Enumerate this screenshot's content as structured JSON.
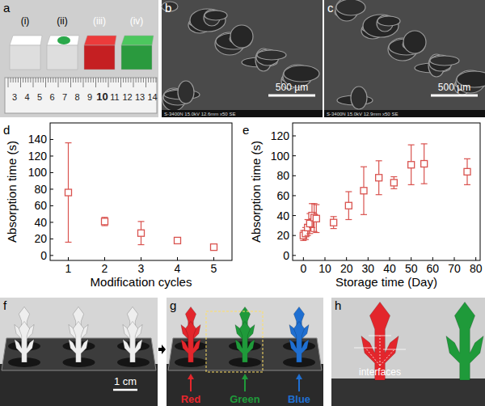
{
  "chart_data": [
    {
      "type": "scatter",
      "x_label": "Modification cycles",
      "y_label": "Absorption time (s)",
      "x": [
        1,
        2,
        3,
        4,
        5
      ],
      "series": [
        {
          "color": "#d9534f",
          "marker": "square",
          "values": [
            76,
            41,
            27,
            18,
            10
          ],
          "errors": [
            60,
            5,
            14,
            2,
            2
          ]
        }
      ],
      "xlim": [
        0.5,
        5.5
      ],
      "ylim": [
        -6,
        160
      ],
      "xticks": [
        1,
        2,
        3,
        4,
        5
      ],
      "yticks": [
        0,
        20,
        40,
        60,
        80,
        100,
        120,
        140
      ]
    },
    {
      "type": "scatter",
      "x_label": "Storage time (Day)",
      "y_label": "Absorption time (s)",
      "x": [
        0,
        1,
        2,
        3,
        4,
        5,
        6,
        14,
        21,
        28,
        35,
        42,
        50,
        56,
        76
      ],
      "series": [
        {
          "color": "#d9534f",
          "marker": "square",
          "values": [
            20,
            22,
            28,
            32,
            40,
            38,
            37,
            33,
            50,
            65,
            78,
            73,
            91,
            92,
            84
          ],
          "errors": [
            5,
            6,
            8,
            10,
            12,
            14,
            14,
            6,
            14,
            24,
            17,
            6,
            20,
            20,
            13
          ]
        }
      ],
      "xlim": [
        -5,
        82
      ],
      "ylim": [
        -5,
        133
      ],
      "xticks": [
        0,
        10,
        20,
        30,
        40,
        50,
        60,
        70,
        80
      ],
      "yticks": [
        0,
        20,
        40,
        60,
        80,
        100,
        120
      ]
    }
  ],
  "figure": {
    "panel_labels": [
      "a",
      "b",
      "c",
      "d",
      "e",
      "f",
      "g",
      "h"
    ],
    "sample_labels": [
      "(i)",
      "(ii)",
      "(iii)",
      "(iv)"
    ],
    "ruler_numbers": [
      3,
      4,
      5,
      6,
      7,
      8,
      9,
      10,
      11,
      12,
      13,
      14
    ],
    "sem_images": [
      {
        "scale_bar": "500 µm",
        "info": "S-3400N 15.0kV 12.6mm x50 SE"
      },
      {
        "scale_bar": "500 µm",
        "info": "S-3400N 15.0kV 12.9mm x50 SE"
      }
    ],
    "scale_bar": "1 cm",
    "color_labels": [
      {
        "label": "Red",
        "color": "#e3262c"
      },
      {
        "label": "Green",
        "color": "#1f9a3a"
      },
      {
        "label": "Blue",
        "color": "#1f6fd1"
      }
    ],
    "interface_label": "interfaces"
  }
}
